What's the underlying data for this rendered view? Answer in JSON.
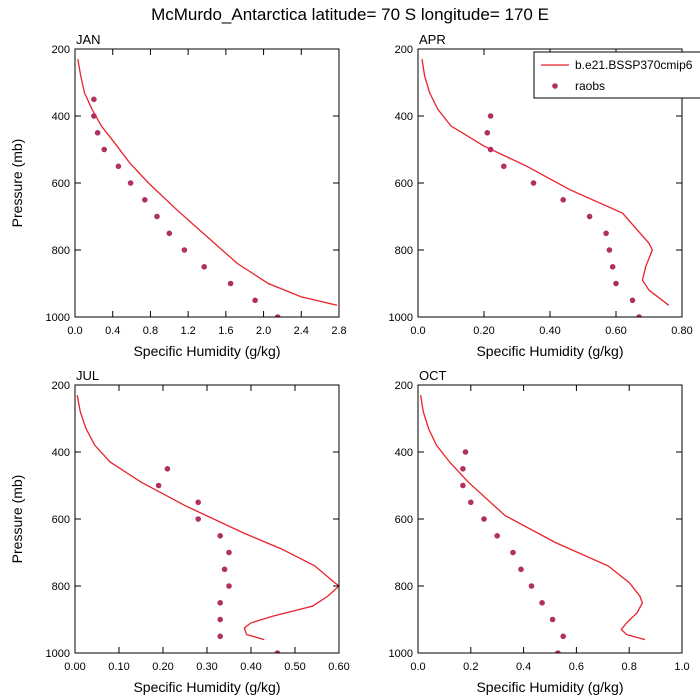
{
  "figure": {
    "title": "McMurdo_Antarctica  latitude= 70 S longitude= 170 E"
  },
  "colors": {
    "model_line": "#e8232a",
    "obs_marker": "#b03060",
    "axes": "#000000"
  },
  "legend": {
    "placement": "top-right of APR panel, clipped",
    "entries": [
      "b.e21.BSSP370cmip6",
      "raobs"
    ]
  },
  "chart_data": [
    {
      "type": "scatter",
      "panel": "JAN",
      "xlabel": "Specific Humidity (g/kg)",
      "ylabel": "Pressure (mb)",
      "xlim": [
        0.0,
        2.8
      ],
      "ylim": [
        1000,
        200
      ],
      "y_inverted": true,
      "xticks": [
        "0.0",
        "0.4",
        "0.8",
        "1.2",
        "1.6",
        "2.0",
        "2.4",
        "2.8"
      ],
      "yticks": [
        "200",
        "400",
        "600",
        "800",
        "1000"
      ],
      "series": [
        {
          "name": "b.e21.BSSP370cmip6",
          "kind": "line",
          "points": [
            [
              0.03,
              230
            ],
            [
              0.06,
              280
            ],
            [
              0.1,
              330
            ],
            [
              0.18,
              380
            ],
            [
              0.28,
              430
            ],
            [
              0.42,
              480
            ],
            [
              0.58,
              540
            ],
            [
              0.78,
              600
            ],
            [
              1.08,
              680
            ],
            [
              1.4,
              760
            ],
            [
              1.72,
              840
            ],
            [
              2.05,
              900
            ],
            [
              2.4,
              940
            ],
            [
              2.78,
              965
            ]
          ]
        },
        {
          "name": "raobs",
          "kind": "markers",
          "points": [
            [
              0.2,
              350
            ],
            [
              0.2,
              400
            ],
            [
              0.24,
              450
            ],
            [
              0.31,
              500
            ],
            [
              0.46,
              550
            ],
            [
              0.59,
              600
            ],
            [
              0.74,
              650
            ],
            [
              0.87,
              700
            ],
            [
              1.0,
              750
            ],
            [
              1.16,
              800
            ],
            [
              1.37,
              850
            ],
            [
              1.65,
              900
            ],
            [
              1.91,
              950
            ],
            [
              2.15,
              1000
            ]
          ]
        }
      ]
    },
    {
      "type": "scatter",
      "panel": "APR",
      "xlabel": "Specific Humidity (g/kg)",
      "ylabel": "",
      "xlim": [
        0.0,
        0.8
      ],
      "ylim": [
        1000,
        200
      ],
      "y_inverted": true,
      "xticks": [
        "0.0",
        "0.20",
        "0.40",
        "0.60",
        "0.80"
      ],
      "yticks": [
        "200",
        "400",
        "600",
        "800",
        "1000"
      ],
      "series": [
        {
          "name": "b.e21.BSSP370cmip6",
          "kind": "line",
          "points": [
            [
              0.012,
              230
            ],
            [
              0.02,
              280
            ],
            [
              0.035,
              330
            ],
            [
              0.06,
              380
            ],
            [
              0.1,
              430
            ],
            [
              0.2,
              490
            ],
            [
              0.33,
              550
            ],
            [
              0.46,
              620
            ],
            [
              0.62,
              690
            ],
            [
              0.7,
              780
            ],
            [
              0.71,
              800
            ],
            [
              0.69,
              850
            ],
            [
              0.68,
              890
            ],
            [
              0.7,
              920
            ],
            [
              0.76,
              965
            ]
          ]
        },
        {
          "name": "raobs",
          "kind": "markers",
          "points": [
            [
              0.22,
              400
            ],
            [
              0.21,
              450
            ],
            [
              0.22,
              500
            ],
            [
              0.26,
              550
            ],
            [
              0.35,
              600
            ],
            [
              0.44,
              650
            ],
            [
              0.52,
              700
            ],
            [
              0.57,
              750
            ],
            [
              0.58,
              800
            ],
            [
              0.59,
              850
            ],
            [
              0.6,
              900
            ],
            [
              0.65,
              950
            ],
            [
              0.67,
              1000
            ]
          ]
        }
      ]
    },
    {
      "type": "scatter",
      "panel": "JUL",
      "xlabel": "Specific Humidity (g/kg)",
      "ylabel": "Pressure (mb)",
      "xlim": [
        0.0,
        0.6
      ],
      "ylim": [
        1000,
        200
      ],
      "y_inverted": true,
      "xticks": [
        "0.00",
        "0.10",
        "0.20",
        "0.30",
        "0.40",
        "0.50",
        "0.60"
      ],
      "yticks": [
        "200",
        "400",
        "600",
        "800",
        "1000"
      ],
      "series": [
        {
          "name": "b.e21.BSSP370cmip6",
          "kind": "line",
          "points": [
            [
              0.005,
              230
            ],
            [
              0.012,
              280
            ],
            [
              0.025,
              330
            ],
            [
              0.045,
              380
            ],
            [
              0.08,
              430
            ],
            [
              0.15,
              490
            ],
            [
              0.25,
              560
            ],
            [
              0.38,
              640
            ],
            [
              0.47,
              690
            ],
            [
              0.545,
              740
            ],
            [
              0.59,
              790
            ],
            [
              0.6,
              800
            ],
            [
              0.575,
              830
            ],
            [
              0.54,
              860
            ],
            [
              0.45,
              890
            ],
            [
              0.4,
              910
            ],
            [
              0.385,
              925
            ],
            [
              0.39,
              945
            ],
            [
              0.43,
              960
            ]
          ]
        },
        {
          "name": "raobs",
          "kind": "markers",
          "points": [
            [
              0.21,
              450
            ],
            [
              0.19,
              500
            ],
            [
              0.28,
              550
            ],
            [
              0.28,
              600
            ],
            [
              0.33,
              650
            ],
            [
              0.35,
              700
            ],
            [
              0.34,
              750
            ],
            [
              0.35,
              800
            ],
            [
              0.33,
              850
            ],
            [
              0.33,
              900
            ],
            [
              0.33,
              950
            ],
            [
              0.46,
              1000
            ]
          ]
        }
      ]
    },
    {
      "type": "scatter",
      "panel": "OCT",
      "xlabel": "Specific Humidity (g/kg)",
      "ylabel": "",
      "xlim": [
        0.0,
        1.0
      ],
      "ylim": [
        1000,
        200
      ],
      "y_inverted": true,
      "xticks": [
        "0.0",
        "0.2",
        "0.4",
        "0.6",
        "0.8",
        "1.0"
      ],
      "yticks": [
        "200",
        "400",
        "600",
        "800",
        "1000"
      ],
      "series": [
        {
          "name": "b.e21.BSSP370cmip6",
          "kind": "line",
          "points": [
            [
              0.01,
              230
            ],
            [
              0.02,
              280
            ],
            [
              0.04,
              330
            ],
            [
              0.07,
              380
            ],
            [
              0.12,
              430
            ],
            [
              0.19,
              490
            ],
            [
              0.33,
              590
            ],
            [
              0.52,
              670
            ],
            [
              0.72,
              740
            ],
            [
              0.8,
              790
            ],
            [
              0.84,
              830
            ],
            [
              0.85,
              850
            ],
            [
              0.83,
              880
            ],
            [
              0.79,
              910
            ],
            [
              0.77,
              930
            ],
            [
              0.79,
              945
            ],
            [
              0.86,
              960
            ]
          ]
        },
        {
          "name": "raobs",
          "kind": "markers",
          "points": [
            [
              0.18,
              400
            ],
            [
              0.17,
              450
            ],
            [
              0.17,
              500
            ],
            [
              0.2,
              550
            ],
            [
              0.25,
              600
            ],
            [
              0.3,
              650
            ],
            [
              0.36,
              700
            ],
            [
              0.39,
              750
            ],
            [
              0.43,
              800
            ],
            [
              0.47,
              850
            ],
            [
              0.51,
              900
            ],
            [
              0.55,
              950
            ],
            [
              0.53,
              1000
            ]
          ]
        }
      ]
    }
  ]
}
